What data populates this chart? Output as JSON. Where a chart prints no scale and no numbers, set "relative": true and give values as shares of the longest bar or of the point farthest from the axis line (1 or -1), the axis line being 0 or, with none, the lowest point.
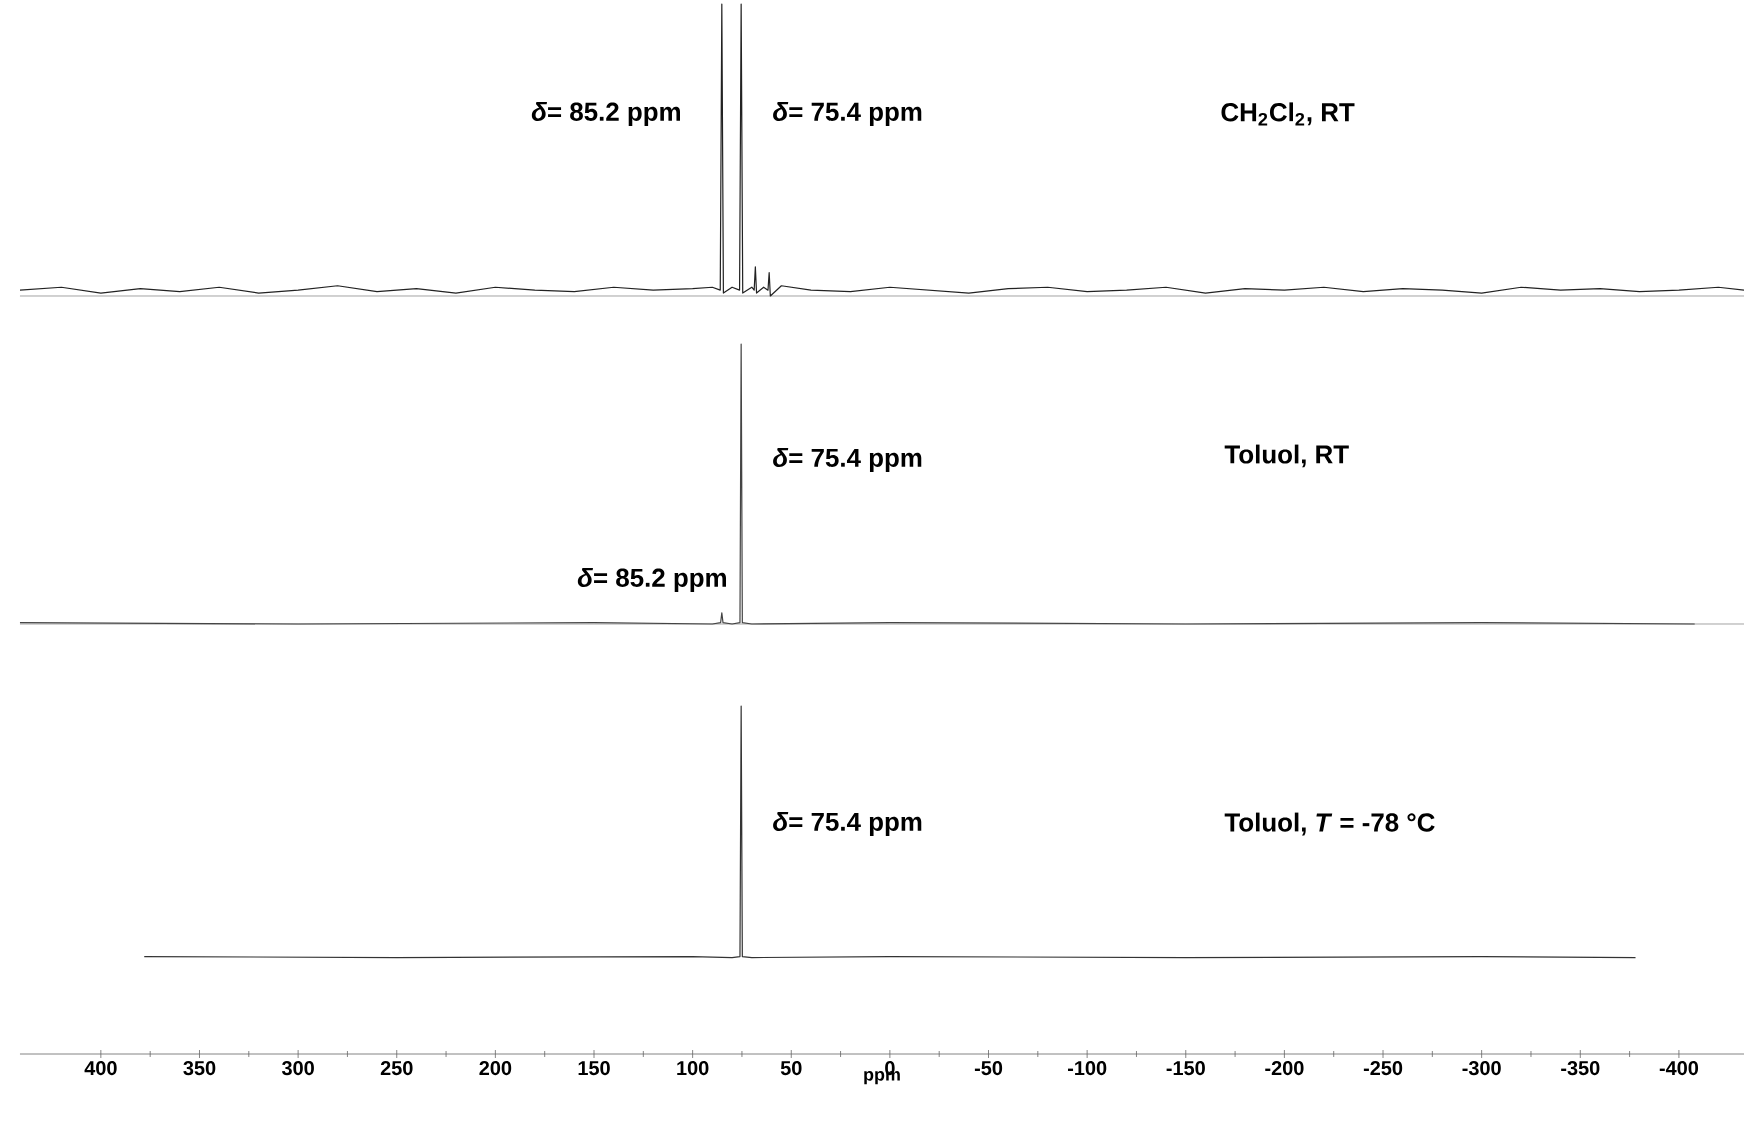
{
  "chart_data": [
    {
      "type": "line",
      "relative": true,
      "xlim": [
        441,
        -433
      ],
      "tick_labels": false,
      "series": [
        {
          "name": "CH$_{2}$Cl$_{2}$, RT",
          "color": "#222222",
          "x": [
            441,
            420,
            400,
            380,
            360,
            340,
            320,
            300,
            280,
            260,
            240,
            220,
            200,
            180,
            160,
            140,
            120,
            100,
            90,
            86.0,
            85.2,
            84.4,
            80,
            76.2,
            75.4,
            74.6,
            70,
            68.8,
            68.2,
            67.6,
            64,
            61.8,
            61.2,
            60.6,
            55,
            40,
            20,
            0,
            -20,
            -40,
            -60,
            -80,
            -100,
            -120,
            -140,
            -160,
            -180,
            -200,
            -220,
            -240,
            -260,
            -280,
            -300,
            -320,
            -340,
            -360,
            -380,
            -400,
            -420,
            -433
          ],
          "values": [
            0.02,
            0.03,
            0.01,
            0.025,
            0.015,
            0.03,
            0.01,
            0.02,
            0.035,
            0.015,
            0.025,
            0.01,
            0.03,
            0.02,
            0.015,
            0.03,
            0.02,
            0.025,
            0.03,
            0.02,
            1,
            0.01,
            0.03,
            0.02,
            1,
            0.01,
            0.03,
            0.02,
            0.1,
            0.01,
            0.03,
            0.02,
            0.08,
            0.0,
            0.035,
            0.02,
            0.015,
            0.03,
            0.02,
            0.01,
            0.025,
            0.03,
            0.015,
            0.02,
            0.03,
            0.01,
            0.025,
            0.02,
            0.03,
            0.015,
            0.025,
            0.02,
            0.01,
            0.03,
            0.02,
            0.025,
            0.015,
            0.02,
            0.03,
            0.02
          ]
        }
      ],
      "annotations": [
        "*δ*= 85.2 ppm",
        "*δ*= 75.4 ppm"
      ]
    },
    {
      "type": "line",
      "relative": true,
      "xlim": [
        441,
        -433
      ],
      "tick_labels": false,
      "series": [
        {
          "name": "Toluol, RT",
          "color": "#444444",
          "x": [
            441,
            300,
            150,
            90,
            85.8,
            85.2,
            84.6,
            80,
            76.0,
            75.4,
            74.8,
            70,
            0,
            -150,
            -300,
            -408
          ],
          "values": [
            0.005,
            0.0,
            0.005,
            0.0,
            0.005,
            0.04,
            0.005,
            0.0,
            0.005,
            1,
            0.005,
            0.0,
            0.005,
            0.0,
            0.005,
            0.0
          ]
        }
      ],
      "annotations": [
        "*δ*= 75.4 ppm",
        "*δ*= 85.2 ppm"
      ]
    },
    {
      "type": "line",
      "relative": true,
      "xlim": [
        441,
        -433
      ],
      "tick_labels": "x",
      "xlabel": "ppm",
      "xticks": [
        400,
        350,
        300,
        250,
        200,
        150,
        100,
        50,
        0,
        -50,
        -100,
        -150,
        -200,
        -250,
        -300,
        -350,
        -400
      ],
      "series": [
        {
          "name": "Toluol, *T* = -78 °C",
          "color": "#333333",
          "x": [
            378,
            250,
            100,
            80,
            76.0,
            75.4,
            74.8,
            70,
            0,
            -150,
            -300,
            -378
          ],
          "values": [
            0.28,
            0.277,
            0.28,
            0.277,
            0.28,
            1,
            0.28,
            0.277,
            0.28,
            0.277,
            0.28,
            0.277
          ]
        }
      ],
      "annotations": [
        "*δ*= 75.4 ppm"
      ]
    }
  ]
}
